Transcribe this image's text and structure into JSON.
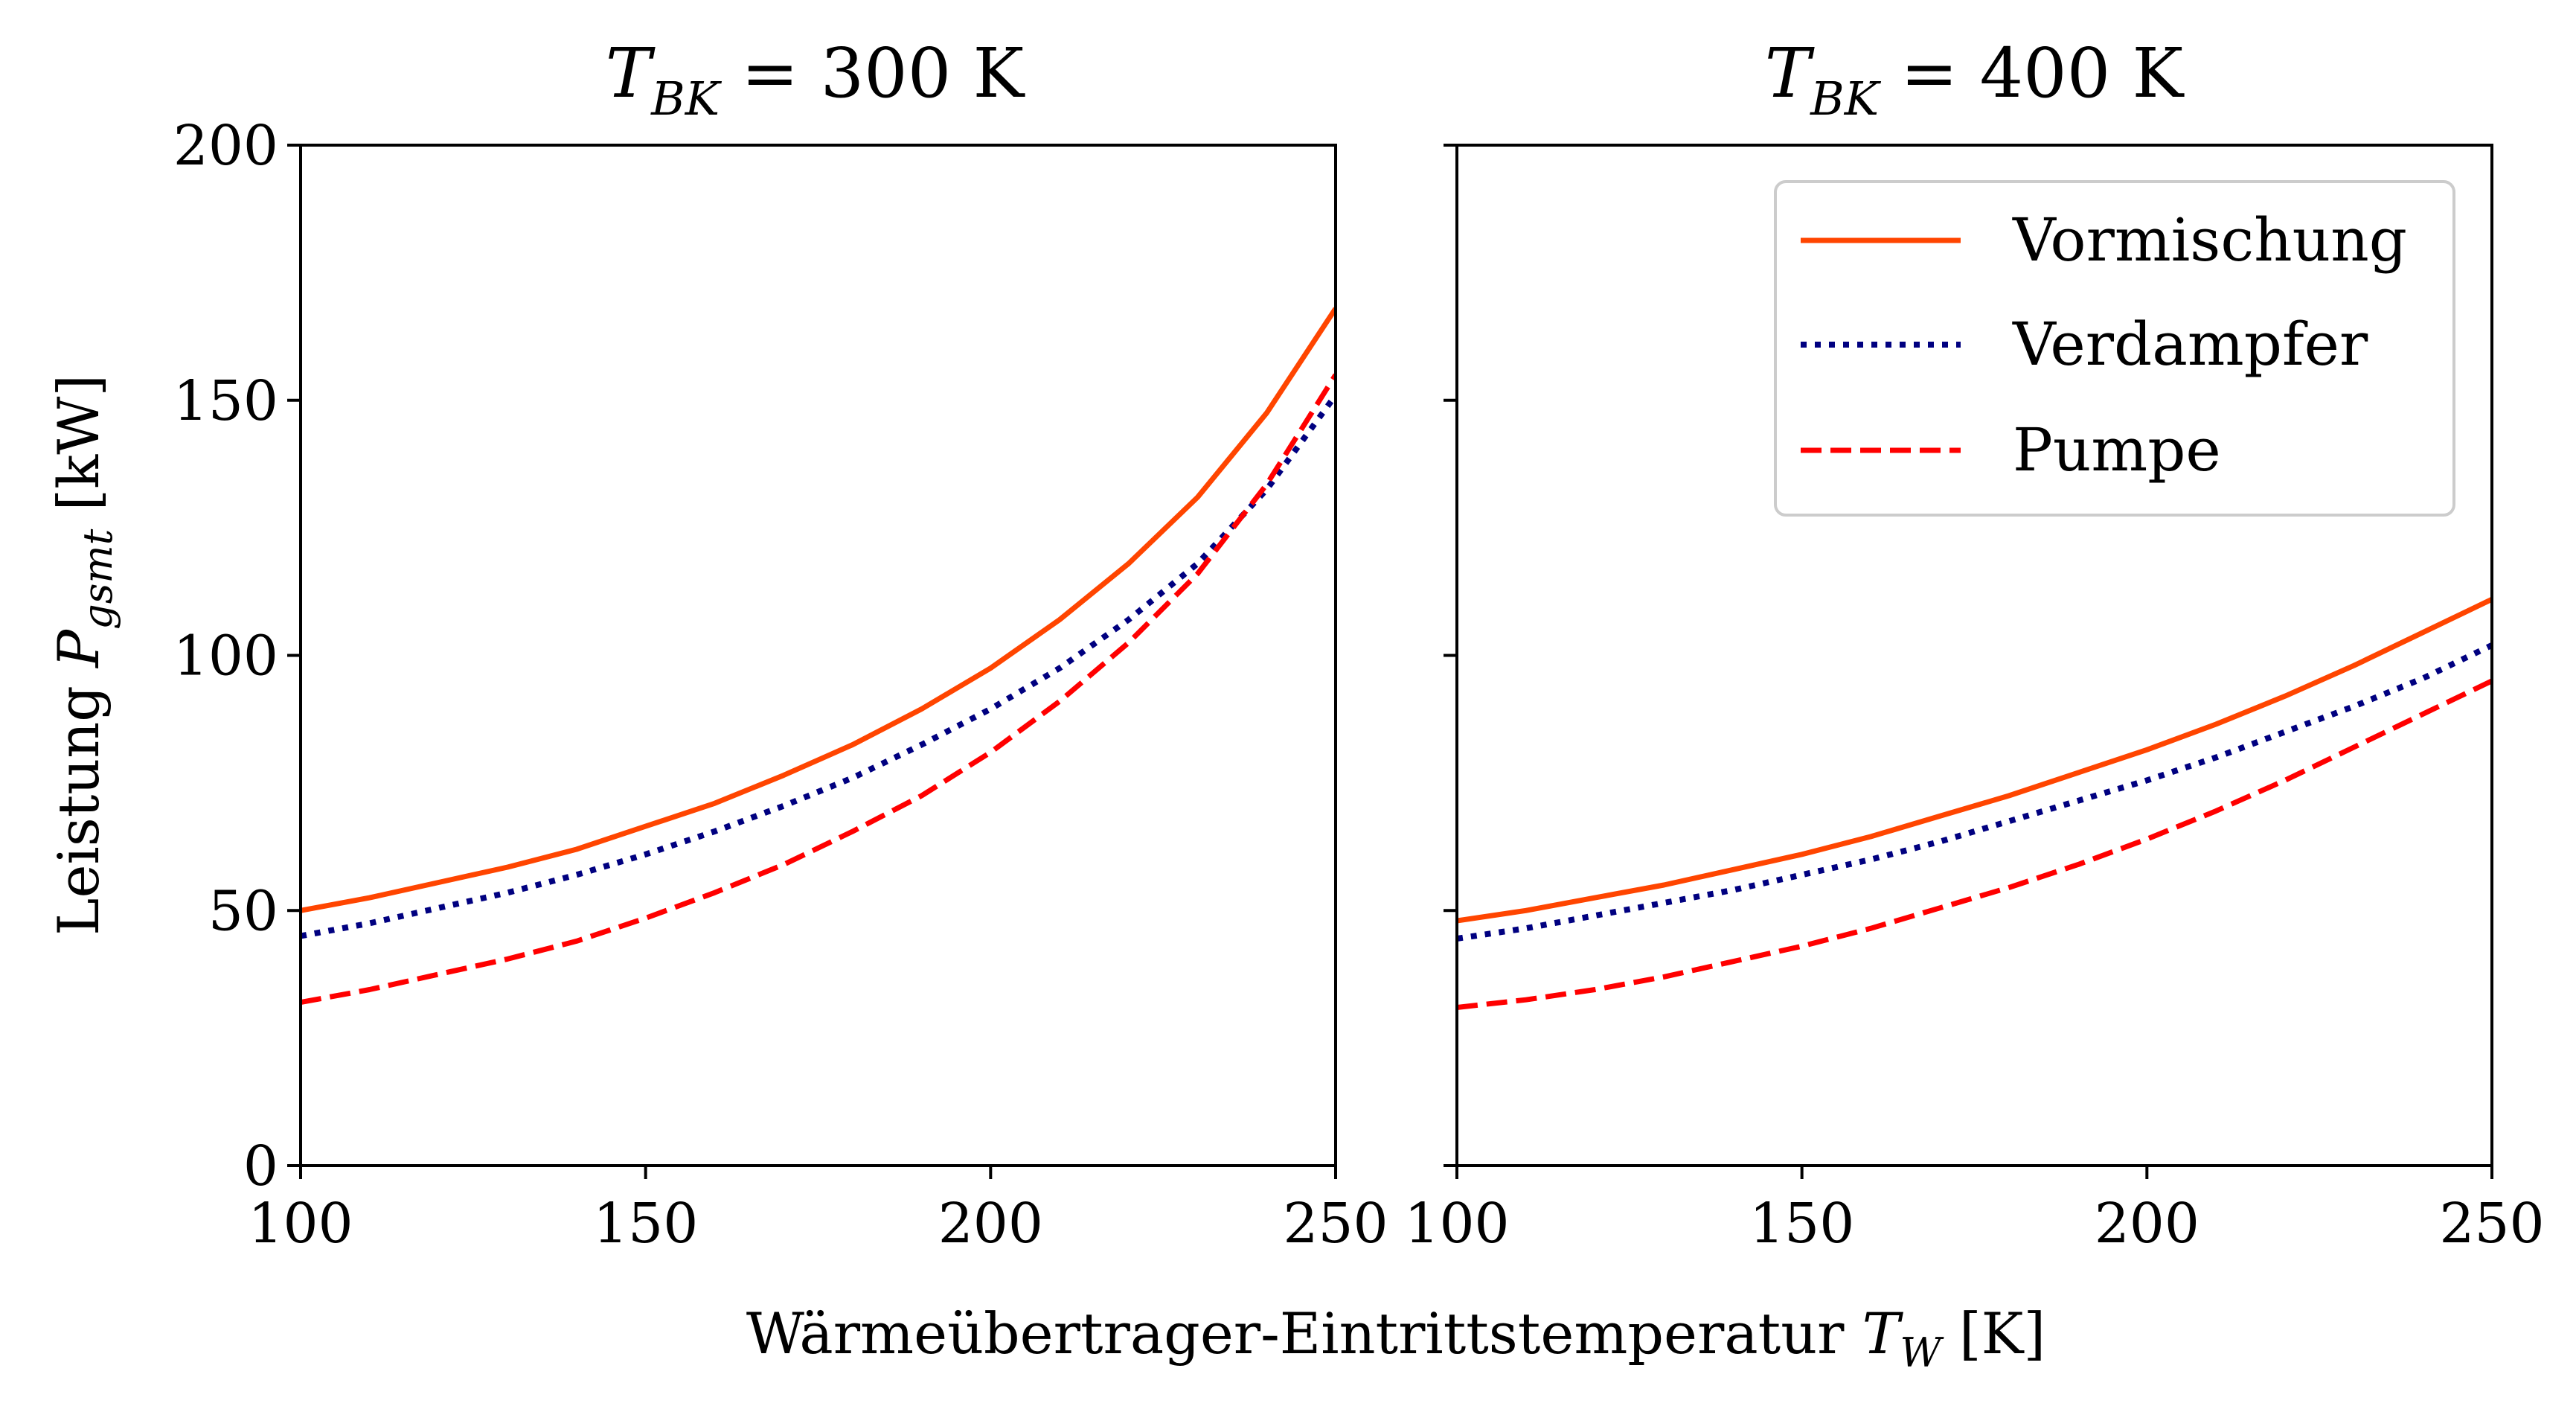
{
  "colors": {
    "Vormischung": "#ff4500",
    "Verdampfer": "#000080",
    "Pumpe": "#ff0000",
    "axes": "#000000",
    "background": "#ffffff"
  },
  "figure": {
    "xlabel_main": "Wärmeübertrager-Eintrittstemperatur ",
    "xlabel_var": "T",
    "xlabel_sub": "W",
    "xlabel_unit": " [K]",
    "ylabel_main": "Leistung ",
    "ylabel_var": "P",
    "ylabel_sub": "gsmt",
    "ylabel_unit": " [kW]"
  },
  "legend": {
    "placement": "top-right of right panel",
    "entries": [
      {
        "name": "Vormischung",
        "style": "solid"
      },
      {
        "name": "Verdampfer",
        "style": "dotted"
      },
      {
        "name": "Pumpe",
        "style": "dashed"
      }
    ]
  },
  "chart_data": [
    {
      "type": "line",
      "title_var": "T",
      "title_sub": "BK",
      "title_rest": " = 300 K",
      "xlim": [
        100,
        250
      ],
      "ylim": [
        0,
        200
      ],
      "x_ticks": [
        "100",
        "150",
        "200",
        "250"
      ],
      "y_ticks": [
        "0",
        "50",
        "100",
        "150",
        "200"
      ],
      "grid": false,
      "x": [
        100,
        110,
        120,
        130,
        140,
        150,
        160,
        170,
        180,
        190,
        200,
        210,
        220,
        230,
        240,
        250
      ],
      "series": [
        {
          "name": "Vormischung",
          "style": "solid",
          "values": [
            50,
            52.5,
            55.5,
            58.5,
            62,
            66.5,
            71,
            76.5,
            82.5,
            89.5,
            97.5,
            107,
            118,
            131,
            147.5,
            168
          ]
        },
        {
          "name": "Verdampfer",
          "style": "dotted",
          "values": [
            45,
            47.5,
            50.5,
            53.5,
            57,
            61,
            65.5,
            70.5,
            76,
            82.5,
            89.5,
            97.5,
            107,
            118,
            132.5,
            151
          ]
        },
        {
          "name": "Pumpe",
          "style": "dashed",
          "values": [
            32,
            34.5,
            37.5,
            40.5,
            44,
            48.5,
            53.5,
            59,
            65.5,
            72.5,
            81,
            91,
            102.5,
            116,
            133.5,
            155
          ]
        }
      ]
    },
    {
      "type": "line",
      "title_var": "T",
      "title_sub": "BK",
      "title_rest": " = 400 K",
      "xlim": [
        100,
        250
      ],
      "ylim": [
        0,
        200
      ],
      "x_ticks": [
        "100",
        "150",
        "200",
        "250"
      ],
      "y_ticks": [
        "0",
        "50",
        "100",
        "150",
        "200"
      ],
      "grid": false,
      "x": [
        100,
        110,
        120,
        130,
        140,
        150,
        160,
        170,
        180,
        190,
        200,
        210,
        220,
        230,
        240,
        250
      ],
      "series": [
        {
          "name": "Vormischung",
          "style": "solid",
          "values": [
            48,
            50,
            52.5,
            55,
            58,
            61,
            64.5,
            68.5,
            72.5,
            77,
            81.5,
            86.5,
            92,
            98,
            104.5,
            111
          ]
        },
        {
          "name": "Verdampfer",
          "style": "dotted",
          "values": [
            44.5,
            46.5,
            49,
            51.5,
            54,
            57,
            60,
            63.5,
            67.5,
            71.5,
            75.5,
            80,
            85,
            90,
            95.5,
            102
          ]
        },
        {
          "name": "Pumpe",
          "style": "dashed",
          "values": [
            31,
            32.5,
            34.5,
            37,
            40,
            43,
            46.5,
            50.5,
            54.5,
            59,
            64,
            69.5,
            75.5,
            82,
            88.5,
            95
          ]
        }
      ]
    }
  ]
}
